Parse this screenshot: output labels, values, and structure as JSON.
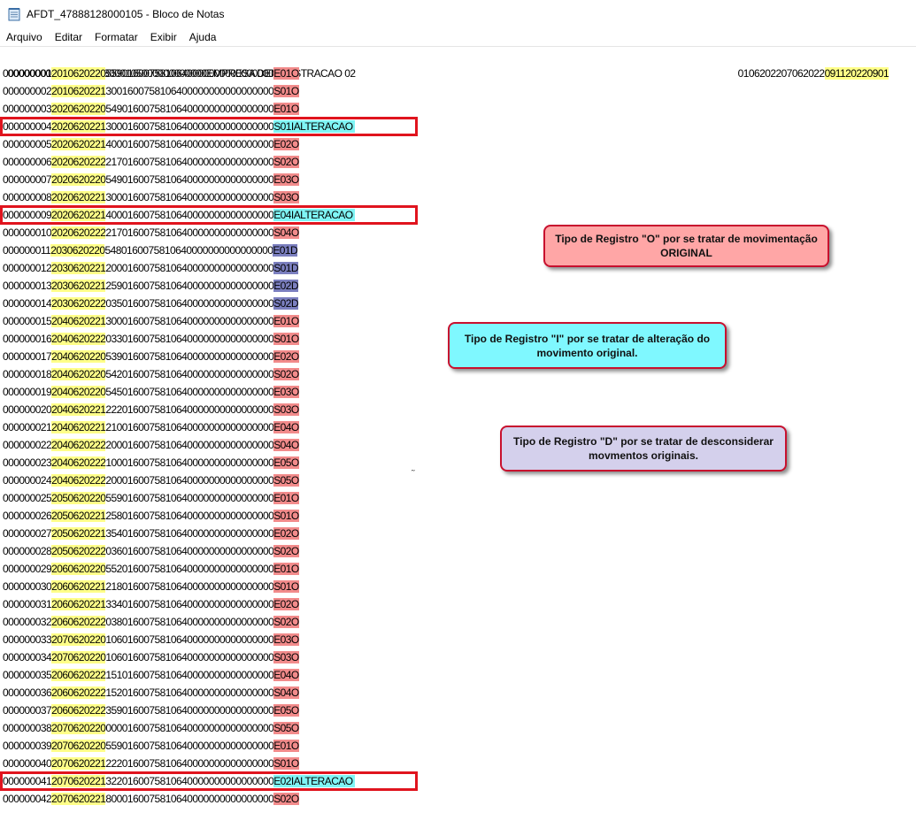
{
  "window": {
    "title": "AFDT_47888128000105 - Bloco de Notas"
  },
  "menu": [
    "Arquivo",
    "Editar",
    "Formatar",
    "Exibir",
    "Ajuda"
  ],
  "header": {
    "left": "0000000011147888128000105000000000000EMPRESA DEMONSTRACAO 02",
    "right_plain": "0106202207062022",
    "right_highlight": "091120220901"
  },
  "records": [
    {
      "seq": "000000001",
      "date": "2010620220",
      "tail": "5590160075810640000000000000000",
      "code": "E01O",
      "extra": "",
      "color": "red"
    },
    {
      "seq": "000000002",
      "date": "2010620221",
      "tail": "3001600758106400000000000000000",
      "code": "S01O",
      "extra": "",
      "color": "red"
    },
    {
      "seq": "000000003",
      "date": "2020620220",
      "tail": "5490160075810640000000000000000",
      "code": "E01O",
      "extra": "",
      "color": "red"
    },
    {
      "seq": "000000004",
      "date": "2020620221",
      "tail": "3000160075810640000000000000000",
      "code": "S01I",
      "extra": "ALTERACAO",
      "color": "cyan"
    },
    {
      "seq": "000000005",
      "date": "2020620221",
      "tail": "4000160075810640000000000000000",
      "code": "E02O",
      "extra": "",
      "color": "red"
    },
    {
      "seq": "000000006",
      "date": "2020620222",
      "tail": "2170160075810640000000000000000",
      "code": "S02O",
      "extra": "",
      "color": "red"
    },
    {
      "seq": "000000007",
      "date": "2020620220",
      "tail": "5490160075810640000000000000000",
      "code": "E03O",
      "extra": "",
      "color": "red"
    },
    {
      "seq": "000000008",
      "date": "2020620221",
      "tail": "3000160075810640000000000000000",
      "code": "S03O",
      "extra": "",
      "color": "red"
    },
    {
      "seq": "000000009",
      "date": "2020620221",
      "tail": "4000160075810640000000000000000",
      "code": "E04I",
      "extra": "ALTERACAO",
      "color": "cyan"
    },
    {
      "seq": "000000010",
      "date": "2020620222",
      "tail": "2170160075810640000000000000000",
      "code": "S04O",
      "extra": "",
      "color": "red"
    },
    {
      "seq": "000000011",
      "date": "2030620220",
      "tail": "5480160075810640000000000000000",
      "code": "E01D",
      "extra": "",
      "color": "blue"
    },
    {
      "seq": "000000012",
      "date": "2030620221",
      "tail": "2000160075810640000000000000000",
      "code": "S01D",
      "extra": "",
      "color": "blue"
    },
    {
      "seq": "000000013",
      "date": "2030620221",
      "tail": "2590160075810640000000000000000",
      "code": "E02D",
      "extra": "",
      "color": "blue"
    },
    {
      "seq": "000000014",
      "date": "2030620222",
      "tail": "0350160075810640000000000000000",
      "code": "S02D",
      "extra": "",
      "color": "blue"
    },
    {
      "seq": "000000015",
      "date": "2040620221",
      "tail": "3000160075810640000000000000000",
      "code": "E01O",
      "extra": "",
      "color": "red"
    },
    {
      "seq": "000000016",
      "date": "2040620222",
      "tail": "0330160075810640000000000000000",
      "code": "S01O",
      "extra": "",
      "color": "red"
    },
    {
      "seq": "000000017",
      "date": "2040620220",
      "tail": "5390160075810640000000000000000",
      "code": "E02O",
      "extra": "",
      "color": "red"
    },
    {
      "seq": "000000018",
      "date": "2040620220",
      "tail": "5420160075810640000000000000000",
      "code": "S02O",
      "extra": "",
      "color": "red"
    },
    {
      "seq": "000000019",
      "date": "2040620220",
      "tail": "5450160075810640000000000000000",
      "code": "E03O",
      "extra": "",
      "color": "red"
    },
    {
      "seq": "000000020",
      "date": "2040620221",
      "tail": "2220160075810640000000000000000",
      "code": "S03O",
      "extra": "",
      "color": "red"
    },
    {
      "seq": "000000021",
      "date": "2040620221",
      "tail": "2100160075810640000000000000000",
      "code": "E04O",
      "extra": "",
      "color": "red"
    },
    {
      "seq": "000000022",
      "date": "2040620222",
      "tail": "2000160075810640000000000000000",
      "code": "S04O",
      "extra": "",
      "color": "red"
    },
    {
      "seq": "000000023",
      "date": "2040620222",
      "tail": "1000160075810640000000000000000",
      "code": "E05O",
      "extra": "",
      "color": "red"
    },
    {
      "seq": "000000024",
      "date": "2040620222",
      "tail": "2000160075810640000000000000000",
      "code": "S05O",
      "extra": "",
      "color": "red"
    },
    {
      "seq": "000000025",
      "date": "2050620220",
      "tail": "5590160075810640000000000000000",
      "code": "E01O",
      "extra": "",
      "color": "red"
    },
    {
      "seq": "000000026",
      "date": "2050620221",
      "tail": "2580160075810640000000000000000",
      "code": "S01O",
      "extra": "",
      "color": "red"
    },
    {
      "seq": "000000027",
      "date": "2050620221",
      "tail": "3540160075810640000000000000000",
      "code": "E02O",
      "extra": "",
      "color": "red"
    },
    {
      "seq": "000000028",
      "date": "2050620222",
      "tail": "0360160075810640000000000000000",
      "code": "S02O",
      "extra": "",
      "color": "red"
    },
    {
      "seq": "000000029",
      "date": "2060620220",
      "tail": "5520160075810640000000000000000",
      "code": "E01O",
      "extra": "",
      "color": "red"
    },
    {
      "seq": "000000030",
      "date": "2060620221",
      "tail": "2180160075810640000000000000000",
      "code": "S01O",
      "extra": "",
      "color": "red"
    },
    {
      "seq": "000000031",
      "date": "2060620221",
      "tail": "3340160075810640000000000000000",
      "code": "E02O",
      "extra": "",
      "color": "red"
    },
    {
      "seq": "000000032",
      "date": "2060620222",
      "tail": "0380160075810640000000000000000",
      "code": "S02O",
      "extra": "",
      "color": "red"
    },
    {
      "seq": "000000033",
      "date": "2070620220",
      "tail": "1060160075810640000000000000000",
      "code": "E03O",
      "extra": "",
      "color": "red"
    },
    {
      "seq": "000000034",
      "date": "2070620220",
      "tail": "1060160075810640000000000000000",
      "code": "S03O",
      "extra": "",
      "color": "red"
    },
    {
      "seq": "000000035",
      "date": "2060620222",
      "tail": "1510160075810640000000000000000",
      "code": "E04O",
      "extra": "",
      "color": "red"
    },
    {
      "seq": "000000036",
      "date": "2060620222",
      "tail": "1520160075810640000000000000000",
      "code": "S04O",
      "extra": "",
      "color": "red"
    },
    {
      "seq": "000000037",
      "date": "2060620222",
      "tail": "3590160075810640000000000000000",
      "code": "E05O",
      "extra": "",
      "color": "red"
    },
    {
      "seq": "000000038",
      "date": "2070620220",
      "tail": "0000160075810640000000000000000",
      "code": "S05O",
      "extra": "",
      "color": "red"
    },
    {
      "seq": "000000039",
      "date": "2070620220",
      "tail": "5590160075810640000000000000000",
      "code": "E01O",
      "extra": "",
      "color": "red"
    },
    {
      "seq": "000000040",
      "date": "2070620221",
      "tail": "2220160075810640000000000000000",
      "code": "S01O",
      "extra": "",
      "color": "red"
    },
    {
      "seq": "000000041",
      "date": "2070620221",
      "tail": "3220160075810640000000000000000",
      "code": "E02I",
      "extra": "ALTERACAO",
      "color": "cyan"
    },
    {
      "seq": "000000042",
      "date": "2070620221",
      "tail": "8000160075810640000000000000000",
      "code": "S02O",
      "extra": "",
      "color": "red"
    }
  ],
  "callouts": {
    "o": "Tipo de Registro \"O\" por se tratar de movimentação ORIGINAL",
    "i": "Tipo de Registro \"I\" por se tratar de alteração do movimento original.",
    "d": "Tipo de Registro \"D\" por se tratar de desconsiderar movmentos originais."
  },
  "colors": {
    "yellow": "#ffff88",
    "red": "#f28b8b",
    "blue": "#7b7fbf",
    "cyan": "#7ff5f5",
    "box": "#e0141e"
  }
}
